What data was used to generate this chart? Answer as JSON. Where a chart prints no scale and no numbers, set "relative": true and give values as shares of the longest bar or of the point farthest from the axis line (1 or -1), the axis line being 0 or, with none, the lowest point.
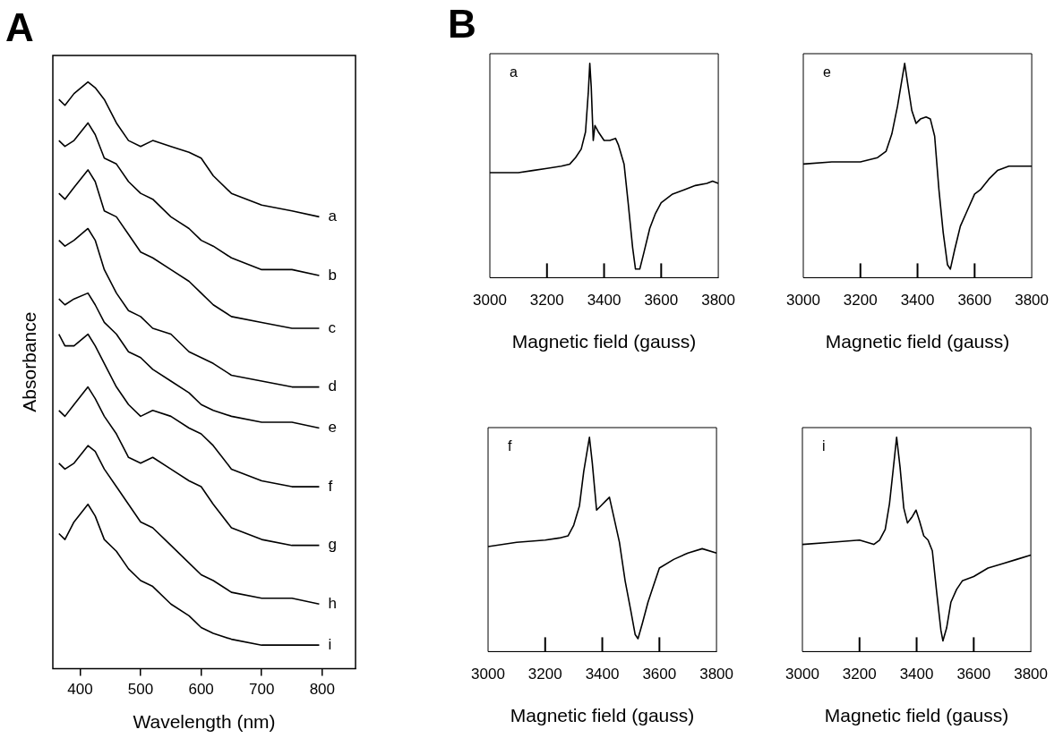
{
  "chart_data": [
    {
      "type": "line",
      "title": "A",
      "xlabel": "Wavelength (nm)",
      "ylabel": "Absorbance",
      "relative": true,
      "marker": "none",
      "xlim": [
        355,
        855
      ],
      "xticks": [
        400,
        500,
        600,
        700,
        800
      ],
      "x": [
        365,
        375,
        390,
        413,
        425,
        440,
        460,
        480,
        500,
        520,
        550,
        580,
        600,
        620,
        650,
        700,
        750,
        795
      ],
      "series": [
        {
          "name": "a",
          "color": "#000000",
          "values": [
            0.97,
            0.96,
            0.98,
            1.0,
            0.99,
            0.97,
            0.93,
            0.9,
            0.89,
            0.9,
            0.89,
            0.88,
            0.87,
            0.84,
            0.81,
            0.79,
            0.78,
            0.77
          ]
        },
        {
          "name": "b",
          "color": "#000000",
          "values": [
            0.9,
            0.89,
            0.9,
            0.93,
            0.91,
            0.87,
            0.86,
            0.83,
            0.81,
            0.8,
            0.77,
            0.75,
            0.73,
            0.72,
            0.7,
            0.68,
            0.68,
            0.67
          ]
        },
        {
          "name": "c",
          "color": "#000000",
          "values": [
            0.81,
            0.8,
            0.82,
            0.85,
            0.83,
            0.78,
            0.77,
            0.74,
            0.71,
            0.7,
            0.68,
            0.66,
            0.64,
            0.62,
            0.6,
            0.59,
            0.58,
            0.58
          ]
        },
        {
          "name": "d",
          "color": "#000000",
          "values": [
            0.73,
            0.72,
            0.73,
            0.75,
            0.73,
            0.68,
            0.64,
            0.61,
            0.6,
            0.58,
            0.57,
            0.54,
            0.53,
            0.52,
            0.5,
            0.49,
            0.48,
            0.48
          ]
        },
        {
          "name": "e",
          "color": "#000000",
          "values": [
            0.63,
            0.62,
            0.63,
            0.64,
            0.62,
            0.59,
            0.57,
            0.54,
            0.53,
            0.51,
            0.49,
            0.47,
            0.45,
            0.44,
            0.43,
            0.42,
            0.42,
            0.41
          ]
        },
        {
          "name": "f",
          "color": "#000000",
          "values": [
            0.57,
            0.55,
            0.55,
            0.57,
            0.55,
            0.52,
            0.48,
            0.45,
            0.43,
            0.44,
            0.43,
            0.41,
            0.4,
            0.38,
            0.34,
            0.32,
            0.31,
            0.31
          ]
        },
        {
          "name": "g",
          "color": "#000000",
          "values": [
            0.44,
            0.43,
            0.45,
            0.48,
            0.46,
            0.43,
            0.4,
            0.36,
            0.35,
            0.36,
            0.34,
            0.32,
            0.31,
            0.28,
            0.24,
            0.22,
            0.21,
            0.21
          ]
        },
        {
          "name": "h",
          "color": "#000000",
          "values": [
            0.35,
            0.34,
            0.35,
            0.38,
            0.37,
            0.34,
            0.31,
            0.28,
            0.25,
            0.24,
            0.21,
            0.18,
            0.16,
            0.15,
            0.13,
            0.12,
            0.12,
            0.11
          ]
        },
        {
          "name": "i",
          "color": "#000000",
          "values": [
            0.23,
            0.22,
            0.25,
            0.28,
            0.26,
            0.22,
            0.2,
            0.17,
            0.15,
            0.14,
            0.11,
            0.09,
            0.07,
            0.06,
            0.05,
            0.04,
            0.04,
            0.04
          ]
        }
      ]
    },
    {
      "type": "line",
      "title": "a",
      "annotations": [
        "B"
      ],
      "xlabel": "Magnetic field (gauss)",
      "relative": true,
      "marker": "none",
      "color": "#000000",
      "xlim": [
        3000,
        3800
      ],
      "xticks": [
        3000,
        3200,
        3400,
        3600,
        3800
      ],
      "x": [
        3000,
        3050,
        3100,
        3150,
        3200,
        3250,
        3280,
        3300,
        3320,
        3335,
        3345,
        3350,
        3355,
        3362,
        3368,
        3380,
        3400,
        3420,
        3440,
        3450,
        3470,
        3485,
        3500,
        3510,
        3525,
        3540,
        3560,
        3580,
        3600,
        3640,
        3680,
        3720,
        3760,
        3780,
        3800
      ],
      "values": [
        0.49,
        0.49,
        0.49,
        0.5,
        0.51,
        0.52,
        0.53,
        0.56,
        0.6,
        0.68,
        0.87,
        1.0,
        0.89,
        0.64,
        0.71,
        0.68,
        0.64,
        0.64,
        0.65,
        0.62,
        0.53,
        0.34,
        0.14,
        0.04,
        0.04,
        0.12,
        0.23,
        0.3,
        0.35,
        0.39,
        0.41,
        0.43,
        0.44,
        0.45,
        0.44
      ]
    },
    {
      "type": "line",
      "title": "e",
      "xlabel": "Magnetic field (gauss)",
      "relative": true,
      "marker": "none",
      "color": "#000000",
      "xlim": [
        3000,
        3800
      ],
      "xticks": [
        3000,
        3200,
        3400,
        3600,
        3800
      ],
      "x": [
        3000,
        3100,
        3200,
        3260,
        3290,
        3310,
        3330,
        3345,
        3355,
        3365,
        3380,
        3395,
        3410,
        3430,
        3445,
        3460,
        3475,
        3490,
        3505,
        3515,
        3530,
        3550,
        3570,
        3600,
        3620,
        3650,
        3680,
        3720,
        3800
      ],
      "values": [
        0.53,
        0.54,
        0.54,
        0.56,
        0.59,
        0.67,
        0.8,
        0.92,
        1.0,
        0.91,
        0.78,
        0.72,
        0.74,
        0.75,
        0.74,
        0.66,
        0.41,
        0.21,
        0.06,
        0.04,
        0.13,
        0.24,
        0.3,
        0.39,
        0.41,
        0.46,
        0.5,
        0.52,
        0.52
      ]
    },
    {
      "type": "line",
      "title": "f",
      "xlabel": "Magnetic field (gauss)",
      "relative": true,
      "marker": "none",
      "color": "#000000",
      "xlim": [
        3000,
        3800
      ],
      "xticks": [
        3000,
        3200,
        3400,
        3600,
        3800
      ],
      "x": [
        3000,
        3100,
        3200,
        3250,
        3280,
        3300,
        3320,
        3335,
        3345,
        3355,
        3365,
        3380,
        3395,
        3410,
        3425,
        3440,
        3460,
        3480,
        3500,
        3515,
        3525,
        3540,
        3560,
        3580,
        3600,
        3650,
        3700,
        3750,
        3800
      ],
      "values": [
        0.49,
        0.51,
        0.52,
        0.53,
        0.54,
        0.59,
        0.68,
        0.84,
        0.92,
        1.0,
        0.88,
        0.66,
        0.68,
        0.7,
        0.72,
        0.63,
        0.51,
        0.33,
        0.19,
        0.08,
        0.06,
        0.13,
        0.23,
        0.31,
        0.39,
        0.43,
        0.46,
        0.48,
        0.46
      ]
    },
    {
      "type": "line",
      "title": "i",
      "xlabel": "Magnetic field (gauss)",
      "relative": true,
      "marker": "none",
      "color": "#000000",
      "xlim": [
        3000,
        3800
      ],
      "xticks": [
        3000,
        3200,
        3400,
        3600,
        3800
      ],
      "x": [
        3000,
        3100,
        3200,
        3250,
        3270,
        3290,
        3305,
        3318,
        3330,
        3342,
        3355,
        3368,
        3385,
        3398,
        3410,
        3425,
        3440,
        3455,
        3470,
        3485,
        3492,
        3505,
        3520,
        3540,
        3560,
        3600,
        3650,
        3700,
        3750,
        3800
      ],
      "values": [
        0.5,
        0.51,
        0.52,
        0.5,
        0.52,
        0.57,
        0.69,
        0.85,
        1.0,
        0.86,
        0.67,
        0.6,
        0.63,
        0.66,
        0.61,
        0.54,
        0.52,
        0.47,
        0.28,
        0.1,
        0.05,
        0.11,
        0.23,
        0.29,
        0.33,
        0.35,
        0.39,
        0.41,
        0.43,
        0.45
      ]
    }
  ]
}
